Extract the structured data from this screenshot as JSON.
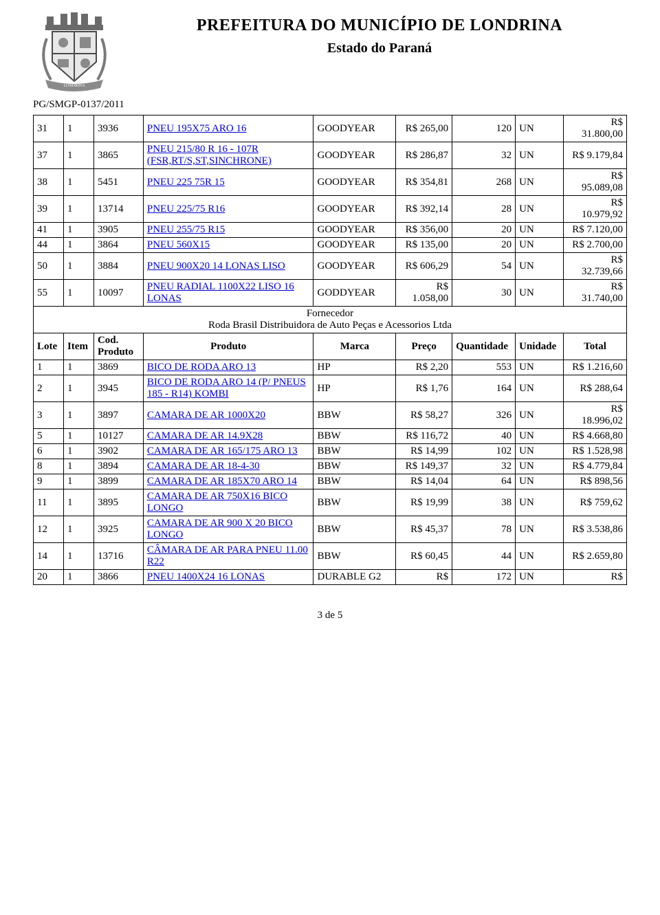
{
  "header": {
    "title": "PREFEITURA DO MUNICÍPIO DE LONDRINA",
    "subtitle": "Estado do Paraná",
    "docref": "PG/SMGP-0137/2011"
  },
  "columns": {
    "lote": "Lote",
    "item": "Item",
    "cod": "Cod. Produto",
    "produto": "Produto",
    "marca": "Marca",
    "preco": "Preço",
    "qtd": "Quantidade",
    "un": "Unidade",
    "total": "Total"
  },
  "supplier": {
    "label": "Fornecedor",
    "name": "Roda Brasil Distribuidora de Auto Peças e Acessorios Ltda"
  },
  "table1": [
    {
      "lote": "31",
      "item": "1",
      "cod": "3936",
      "produto": "PNEU 195X75 ARO 16",
      "marca": "GOODYEAR",
      "preco": "R$ 265,00",
      "qtd": "120",
      "un": "UN",
      "total": "R$ 31.800,00"
    },
    {
      "lote": "37",
      "item": "1",
      "cod": "3865",
      "produto": "PNEU 215/80 R 16 - 107R (FSR,RT/S,ST,SINCHRONE)",
      "marca": "GOODYEAR",
      "preco": "R$ 286,87",
      "qtd": "32",
      "un": "UN",
      "total": "R$ 9.179,84"
    },
    {
      "lote": "38",
      "item": "1",
      "cod": "5451",
      "produto": "PNEU 225 75R 15",
      "marca": "GOODYEAR",
      "preco": "R$ 354,81",
      "qtd": "268",
      "un": "UN",
      "total": "R$ 95.089,08"
    },
    {
      "lote": "39",
      "item": "1",
      "cod": "13714",
      "produto": "PNEU 225/75 R16",
      "marca": "GOODYEAR",
      "preco": "R$ 392,14",
      "qtd": "28",
      "un": "UN",
      "total": "R$ 10.979,92"
    },
    {
      "lote": "41",
      "item": "1",
      "cod": "3905",
      "produto": "PNEU 255/75 R15",
      "marca": "GOODYEAR",
      "preco": "R$ 356,00",
      "qtd": "20",
      "un": "UN",
      "total": "R$ 7.120,00"
    },
    {
      "lote": "44",
      "item": "1",
      "cod": "3864",
      "produto": "PNEU 560X15",
      "marca": "GOODYEAR",
      "preco": "R$ 135,00",
      "qtd": "20",
      "un": "UN",
      "total": "R$ 2.700,00"
    },
    {
      "lote": "50",
      "item": "1",
      "cod": "3884",
      "produto": "PNEU 900X20 14 LONAS LISO",
      "marca": "GOODYEAR",
      "preco": "R$ 606,29",
      "qtd": "54",
      "un": "UN",
      "total": "R$ 32.739,66"
    },
    {
      "lote": "55",
      "item": "1",
      "cod": "10097",
      "produto": "PNEU RADIAL 1100X22 LISO 16 LONAS",
      "marca": "GODDYEAR",
      "preco": "R$ 1.058,00",
      "qtd": "30",
      "un": "UN",
      "total": "R$ 31.740,00"
    }
  ],
  "table2": [
    {
      "lote": "1",
      "item": "1",
      "cod": "3869",
      "produto": "BICO DE RODA ARO 13",
      "marca": "HP",
      "preco": "R$ 2,20",
      "qtd": "553",
      "un": "UN",
      "total": "R$ 1.216,60"
    },
    {
      "lote": "2",
      "item": "1",
      "cod": "3945",
      "produto": "BICO DE RODA ARO 14 (P/ PNEUS 185 - R14) KOMBI",
      "marca": "HP",
      "preco": "R$ 1,76",
      "qtd": "164",
      "un": "UN",
      "total": "R$ 288,64"
    },
    {
      "lote": "3",
      "item": "1",
      "cod": "3897",
      "produto": "CAMARA DE AR 1000X20",
      "marca": "BBW",
      "preco": "R$ 58,27",
      "qtd": "326",
      "un": "UN",
      "total": "R$ 18.996,02"
    },
    {
      "lote": "5",
      "item": "1",
      "cod": "10127",
      "produto": "CAMARA DE AR 14.9X28",
      "marca": "BBW",
      "preco": "R$ 116,72",
      "qtd": "40",
      "un": "UN",
      "total": "R$ 4.668,80"
    },
    {
      "lote": "6",
      "item": "1",
      "cod": "3902",
      "produto": "CAMARA DE AR 165/175 ARO 13",
      "marca": "BBW",
      "preco": "R$ 14,99",
      "qtd": "102",
      "un": "UN",
      "total": "R$ 1.528,98"
    },
    {
      "lote": "8",
      "item": "1",
      "cod": "3894",
      "produto": "CAMARA DE AR 18-4-30",
      "marca": "BBW",
      "preco": "R$ 149,37",
      "qtd": "32",
      "un": "UN",
      "total": "R$ 4.779,84"
    },
    {
      "lote": "9",
      "item": "1",
      "cod": "3899",
      "produto": "CAMARA DE AR 185X70 ARO 14",
      "marca": "BBW",
      "preco": "R$ 14,04",
      "qtd": "64",
      "un": "UN",
      "total": "R$ 898,56"
    },
    {
      "lote": "11",
      "item": "1",
      "cod": "3895",
      "produto": "CAMARA DE AR 750X16 BICO LONGO",
      "marca": "BBW",
      "preco": "R$ 19,99",
      "qtd": "38",
      "un": "UN",
      "total": "R$ 759,62"
    },
    {
      "lote": "12",
      "item": "1",
      "cod": "3925",
      "produto": "CAMARA DE AR 900 X 20 BICO LONGO",
      "marca": "BBW",
      "preco": "R$ 45,37",
      "qtd": "78",
      "un": "UN",
      "total": "R$ 3.538,86"
    },
    {
      "lote": "14",
      "item": "1",
      "cod": "13716",
      "produto": "CÂMARA DE AR PARA PNEU 11.00 R22",
      "marca": "BBW",
      "preco": "R$ 60,45",
      "qtd": "44",
      "un": "UN",
      "total": "R$ 2.659,80"
    },
    {
      "lote": "20",
      "item": "1",
      "cod": "3866",
      "produto": "PNEU 1400X24 16 LONAS",
      "marca": "DURABLE G2",
      "preco": "R$",
      "qtd": "172",
      "un": "UN",
      "total": "R$"
    }
  ],
  "footer": {
    "page": "3 de 5"
  },
  "style": {
    "link_color": "#0000cc",
    "text_color": "#000000",
    "border_color": "#000000",
    "background": "#ffffff",
    "font_family": "Times New Roman",
    "title_fontsize_pt": 18,
    "subtitle_fontsize_pt": 15,
    "body_fontsize_pt": 11
  }
}
